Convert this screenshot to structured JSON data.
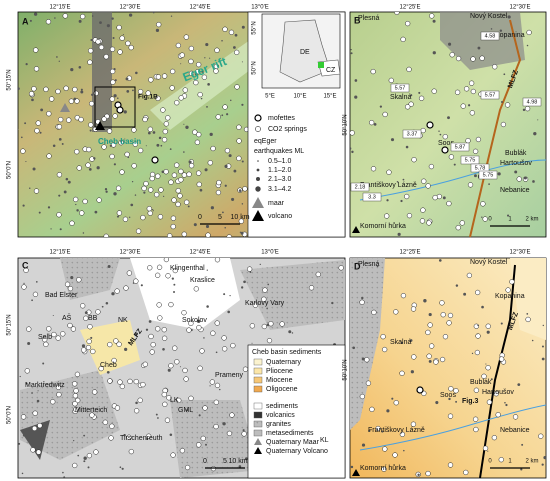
{
  "panel_a": {
    "label": "A",
    "lon_ticks": [
      "12°15'E",
      "12°30'E",
      "12°45'E",
      "13°0'E"
    ],
    "lat_ticks": [
      "50°15'N",
      "50°0'N"
    ],
    "annotations": [
      "Eger rift",
      "Fig.1B",
      "Cheb basin"
    ],
    "inset": {
      "lat_ticks": [
        "55°N",
        "50°N"
      ],
      "lon_ticks": [
        "5°E",
        "10°E",
        "15°E"
      ],
      "countries": [
        "DE",
        "CZ"
      ]
    },
    "legend": [
      "mofettes",
      "CO2 springs",
      "eqEger",
      "earthquakes ML",
      "0.5–1.0",
      "1.1–2.0",
      "2.1–3.0",
      "3.1–4.2",
      "maar",
      "volcano"
    ],
    "scale": [
      "0",
      "5",
      "10 km"
    ]
  },
  "panel_b": {
    "label": "B",
    "lon_ticks": [
      "12°25'E",
      "12°30'E"
    ],
    "lat_ticks": [
      "50°10'N"
    ],
    "places": [
      "Plesná",
      "Nový Kostel",
      "Kopanina",
      "MLFZ",
      "Skalná",
      "Soos",
      "Bublák",
      "Hartoušov",
      "Nebanice",
      "Františkovy Lázně",
      "Ohře",
      "Komorní hůrka"
    ],
    "depths": [
      "4.58",
      "5.57",
      "5.57",
      "4.98",
      "3.37",
      "5.87",
      "5.75",
      "5.78",
      "5.75",
      "2.18",
      "3.3"
    ],
    "scale": [
      "0",
      "1",
      "2 km"
    ]
  },
  "panel_c": {
    "label": "C",
    "lon_ticks": [
      "12°15'E",
      "12°30'E",
      "12°45'E",
      "13°0'E"
    ],
    "lat_ticks": [
      "50°15'N",
      "50°0'N"
    ],
    "places": [
      "Klingenthal",
      "Kraslice",
      "Bad Elster",
      "AŠ",
      "BB",
      "NK",
      "Karlovy Vary",
      "Sokolov",
      "Selb",
      "MLFZ",
      "Cheb",
      "Prameny",
      "Marktredwitz",
      "Mitterteich",
      "LK",
      "GML",
      "Tirschenreuth",
      "KL"
    ],
    "scale": [
      "0",
      "5",
      "10 km"
    ],
    "legend_basin": {
      "title": "Cheb basin sediments",
      "items": [
        "Quaternary",
        "Pliocene",
        "Miocene",
        "Oligocene"
      ]
    },
    "legend_geology": [
      "sediments",
      "volcanics",
      "granites",
      "metasediments",
      "Quaternary Maar",
      "Quaternary Volcano"
    ]
  },
  "panel_d": {
    "label": "D",
    "lon_ticks": [
      "12°25'E",
      "12°30'E"
    ],
    "lat_ticks": [
      "50°10'N"
    ],
    "places": [
      "Plesná",
      "Nový Kostel",
      "Kopanina",
      "MLFZ",
      "Skalná",
      "Soos",
      "Bublák",
      "Hartoušov",
      "Fig.3",
      "Nebanice",
      "Františkovy Lázně",
      "Komorní hůrka"
    ],
    "scale": [
      "0",
      "1",
      "2 km"
    ]
  }
}
